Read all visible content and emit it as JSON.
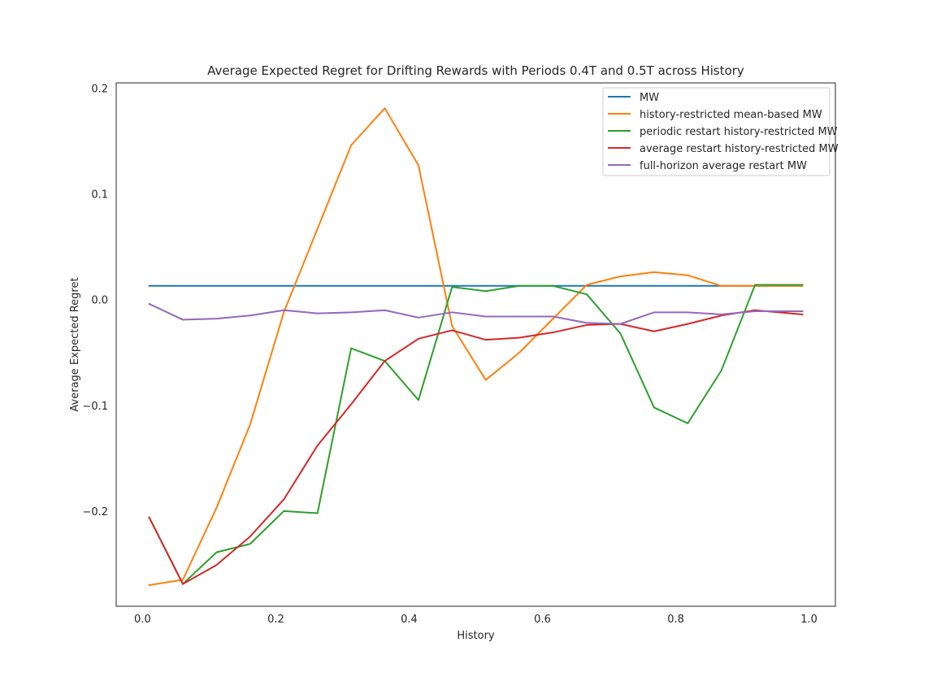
{
  "chart_data": {
    "type": "line",
    "title": "Average Expected Regret for Drifting Rewards with Periods 0.4T and 0.5T across History",
    "xlabel": "History",
    "ylabel": "Average Expected Regret",
    "xlim": [
      -0.0395,
      1.0395
    ],
    "ylim": [
      -0.29,
      0.205
    ],
    "xticks": [
      0.0,
      0.2,
      0.4,
      0.6,
      0.8,
      1.0
    ],
    "xtick_labels": [
      "0.0",
      "0.2",
      "0.4",
      "0.6",
      "0.8",
      "1.0"
    ],
    "yticks": [
      -0.2,
      -0.1,
      0.0,
      0.1,
      0.2
    ],
    "ytick_labels": [
      "−0.2",
      "−0.1",
      "0.0",
      "0.1",
      "0.2"
    ],
    "grid": false,
    "legend": "top-right",
    "x": [
      0.01,
      0.0605,
      0.111,
      0.1615,
      0.212,
      0.2625,
      0.313,
      0.3635,
      0.414,
      0.4645,
      0.515,
      0.5655,
      0.616,
      0.6665,
      0.717,
      0.7675,
      0.818,
      0.8685,
      0.919,
      0.99
    ],
    "series": [
      {
        "name": "MW",
        "color": "#1f77b4",
        "values": [
          0.013,
          0.013,
          0.013,
          0.013,
          0.013,
          0.013,
          0.013,
          0.013,
          0.013,
          0.013,
          0.013,
          0.013,
          0.013,
          0.013,
          0.013,
          0.013,
          0.013,
          0.013,
          0.013,
          0.013
        ]
      },
      {
        "name": "history-restricted mean-based MW",
        "color": "#ff7f0e",
        "values": [
          -0.27,
          -0.265,
          -0.197,
          -0.118,
          -0.012,
          0.067,
          0.146,
          0.181,
          0.127,
          -0.025,
          -0.076,
          -0.05,
          -0.018,
          0.014,
          0.022,
          0.026,
          0.023,
          0.013,
          0.013,
          0.013
        ]
      },
      {
        "name": "periodic restart history-restricted MW",
        "color": "#2ca02c",
        "values": [
          -0.206,
          -0.269,
          -0.239,
          -0.231,
          -0.2,
          -0.202,
          -0.046,
          -0.058,
          -0.095,
          0.012,
          0.008,
          0.013,
          0.013,
          0.005,
          -0.032,
          -0.102,
          -0.117,
          -0.067,
          0.014,
          0.014
        ]
      },
      {
        "name": "average restart history-restricted MW",
        "color": "#d62728",
        "values": [
          -0.206,
          -0.269,
          -0.251,
          -0.224,
          -0.189,
          -0.138,
          -0.099,
          -0.058,
          -0.037,
          -0.029,
          -0.038,
          -0.036,
          -0.031,
          -0.024,
          -0.023,
          -0.03,
          -0.023,
          -0.015,
          -0.01,
          -0.014
        ]
      },
      {
        "name": "full-horizon average restart MW",
        "color": "#9467bd",
        "values": [
          -0.004,
          -0.019,
          -0.018,
          -0.015,
          -0.01,
          -0.013,
          -0.012,
          -0.01,
          -0.017,
          -0.012,
          -0.016,
          -0.016,
          -0.016,
          -0.022,
          -0.023,
          -0.012,
          -0.012,
          -0.014,
          -0.011,
          -0.011
        ]
      }
    ]
  }
}
